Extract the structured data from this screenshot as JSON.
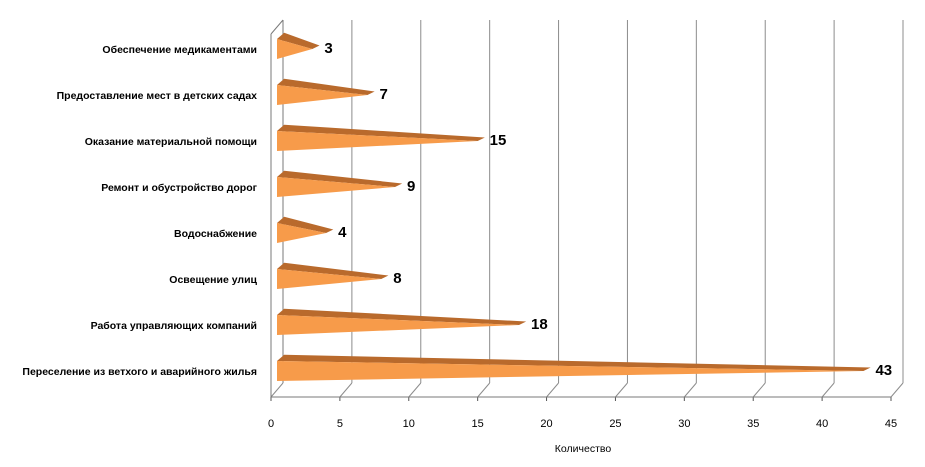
{
  "chart_data": {
    "type": "bar",
    "orientation": "horizontal",
    "categories": [
      "Обеспечение медикаментами",
      "Предоставление мест в детских садах",
      "Оказание материальной помощи",
      "Ремонт и обустройство дорог",
      "Водоснабжение",
      "Освещение улиц",
      "Работа управляющих компаний",
      "Переселение из ветхого и аварийного жилья"
    ],
    "values": [
      3,
      7,
      15,
      9,
      4,
      8,
      18,
      43
    ],
    "xlabel": "Количество",
    "ylabel": "",
    "xlim": [
      0,
      45
    ],
    "xticks": [
      "0",
      "5",
      "10",
      "15",
      "20",
      "25",
      "30",
      "35",
      "40",
      "45"
    ],
    "grid": true,
    "legend": "none",
    "data_labels": true,
    "colors": {
      "bar": "#F79B4A",
      "bar_top": "#B96A2C",
      "grid": "#8C8C8C"
    }
  }
}
